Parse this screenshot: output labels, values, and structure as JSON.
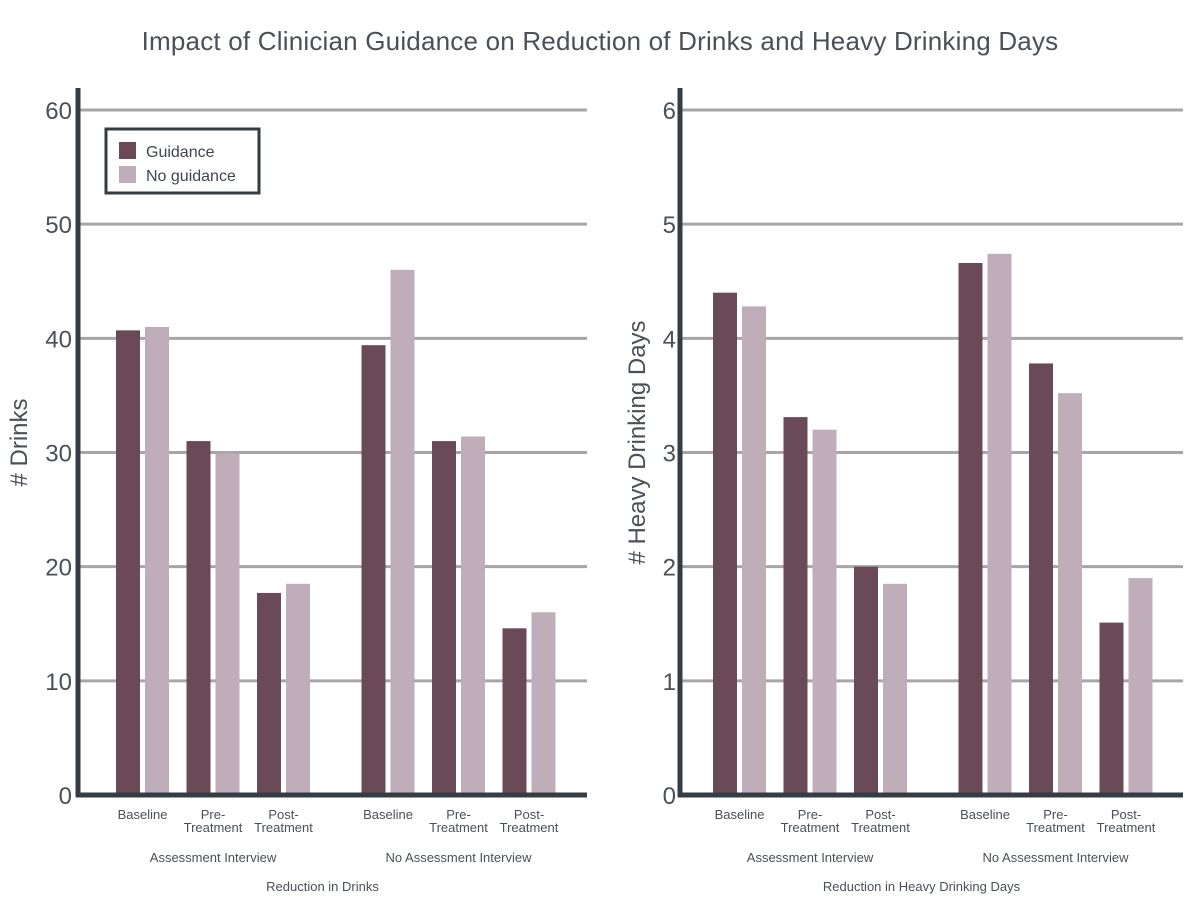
{
  "title": "Impact of Clinician Guidance on Reduction of Drinks and Heavy Drinking Days",
  "colors": {
    "guidance": "#6b4a57",
    "no_guidance": "#bfadb9",
    "axis": "#343c44",
    "grid": "#a6a6a6"
  },
  "legend": {
    "items": [
      "Guidance",
      "No guidance"
    ],
    "placement": "top-left"
  },
  "chart_data": [
    {
      "type": "bar",
      "ylabel": "# Drinks",
      "xlabel": "Reduction in Drinks",
      "ylim": [
        0,
        60
      ],
      "yticks": [
        0,
        10,
        20,
        30,
        40,
        50,
        60
      ],
      "grid": true,
      "groups": [
        {
          "label": "Assessment Interview",
          "categories": [
            [
              "Baseline"
            ],
            [
              "Pre-",
              "Treatment"
            ],
            [
              "Post-",
              "Treatment"
            ]
          ]
        },
        {
          "label": "No Assessment Interview",
          "categories": [
            [
              "Baseline"
            ],
            [
              "Pre-",
              "Treatment"
            ],
            [
              "Post-",
              "Treatment"
            ]
          ]
        }
      ],
      "series": [
        {
          "name": "Guidance",
          "values": [
            40.7,
            31,
            17.7,
            39.4,
            31,
            14.6
          ]
        },
        {
          "name": "No guidance",
          "values": [
            41,
            29.9,
            18.5,
            46,
            31.4,
            16
          ]
        }
      ]
    },
    {
      "type": "bar",
      "ylabel": "# Heavy Drinking Days",
      "xlabel": "Reduction in Heavy Drinking Days",
      "ylim": [
        0,
        6
      ],
      "yticks": [
        0,
        1,
        2,
        3,
        4,
        5,
        6
      ],
      "grid": true,
      "groups": [
        {
          "label": "Assessment Interview",
          "categories": [
            [
              "Baseline"
            ],
            [
              "Pre-",
              "Treatment"
            ],
            [
              "Post-",
              "Treatment"
            ]
          ]
        },
        {
          "label": "No Assessment Interview",
          "categories": [
            [
              "Baseline"
            ],
            [
              "Pre-",
              "Treatment"
            ],
            [
              "Post-",
              "Treatment"
            ]
          ]
        }
      ],
      "series": [
        {
          "name": "Guidance",
          "values": [
            4.4,
            3.31,
            2.0,
            4.66,
            3.78,
            1.51
          ]
        },
        {
          "name": "No guidance",
          "values": [
            4.28,
            3.2,
            1.85,
            4.74,
            3.52,
            1.9
          ]
        }
      ]
    }
  ]
}
